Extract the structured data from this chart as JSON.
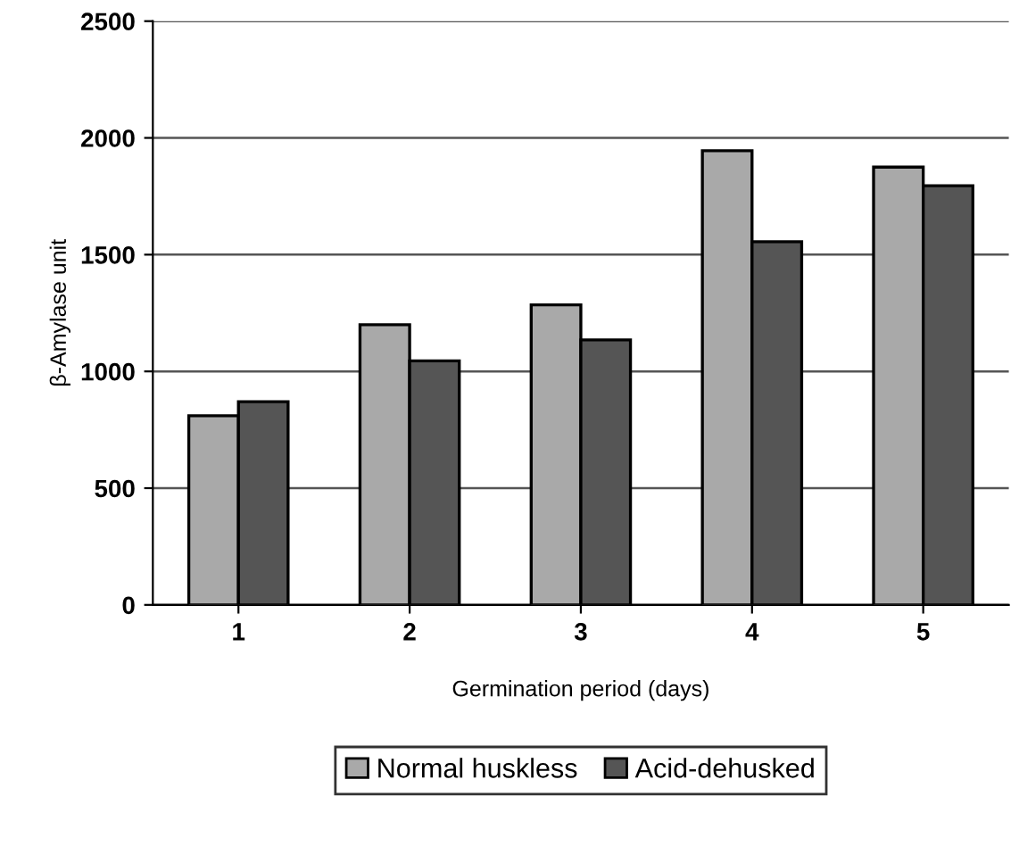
{
  "chart_data": {
    "type": "bar",
    "xlabel": "Germination period (days)",
    "ylabel": "β-Amylase unit",
    "categories": [
      "1",
      "2",
      "3",
      "4",
      "5"
    ],
    "series": [
      {
        "name": "Normal huskless",
        "color": "#a9a9a9",
        "values": [
          810,
          1200,
          1285,
          1945,
          1875
        ]
      },
      {
        "name": "Acid-dehusked",
        "color": "#555555",
        "values": [
          870,
          1045,
          1135,
          1555,
          1795
        ]
      }
    ],
    "ylim": [
      0,
      2500
    ],
    "yticks": [
      0,
      500,
      1000,
      1500,
      2000,
      2500
    ],
    "grid": "y",
    "legend": "bottom"
  }
}
